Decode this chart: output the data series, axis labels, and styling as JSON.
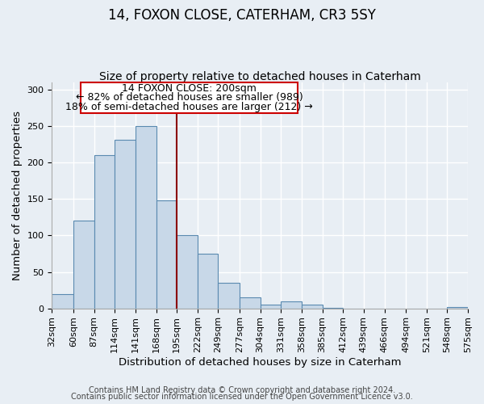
{
  "title": "14, FOXON CLOSE, CATERHAM, CR3 5SY",
  "subtitle": "Size of property relative to detached houses in Caterham",
  "xlabel": "Distribution of detached houses by size in Caterham",
  "ylabel": "Number of detached properties",
  "bar_left_edges": [
    32,
    60,
    87,
    114,
    141,
    168,
    195,
    222,
    249,
    277,
    304,
    331,
    358,
    385,
    412,
    439,
    466,
    494,
    521,
    548
  ],
  "bar_heights": [
    20,
    120,
    210,
    231,
    250,
    148,
    100,
    75,
    35,
    15,
    5,
    10,
    5,
    1,
    0,
    0,
    0,
    0,
    0,
    2
  ],
  "bar_widths": [
    28,
    27,
    27,
    27,
    27,
    27,
    27,
    27,
    28,
    27,
    27,
    27,
    27,
    27,
    27,
    27,
    28,
    27,
    27,
    27
  ],
  "bar_color": "#c8d8e8",
  "bar_edge_color": "#5a8ab0",
  "marker_x": 195,
  "marker_color": "#8b0000",
  "annotation_title": "14 FOXON CLOSE: 200sqm",
  "annotation_line1": "← 82% of detached houses are smaller (989)",
  "annotation_line2": "18% of semi-detached houses are larger (212) →",
  "annotation_box_color": "#cc0000",
  "xlim": [
    32,
    575
  ],
  "ylim": [
    0,
    310
  ],
  "yticks": [
    0,
    50,
    100,
    150,
    200,
    250,
    300
  ],
  "xtick_labels": [
    "32sqm",
    "60sqm",
    "87sqm",
    "114sqm",
    "141sqm",
    "168sqm",
    "195sqm",
    "222sqm",
    "249sqm",
    "277sqm",
    "304sqm",
    "331sqm",
    "358sqm",
    "385sqm",
    "412sqm",
    "439sqm",
    "466sqm",
    "494sqm",
    "521sqm",
    "548sqm",
    "575sqm"
  ],
  "xtick_positions": [
    32,
    60,
    87,
    114,
    141,
    168,
    195,
    222,
    249,
    277,
    304,
    331,
    358,
    385,
    412,
    439,
    466,
    494,
    521,
    548,
    575
  ],
  "footer1": "Contains HM Land Registry data © Crown copyright and database right 2024.",
  "footer2": "Contains public sector information licensed under the Open Government Licence v3.0.",
  "background_color": "#e8eef4",
  "grid_color": "#ffffff",
  "title_fontsize": 12,
  "subtitle_fontsize": 10,
  "axis_label_fontsize": 9.5,
  "tick_fontsize": 8,
  "annotation_fontsize": 9,
  "footer_fontsize": 7
}
